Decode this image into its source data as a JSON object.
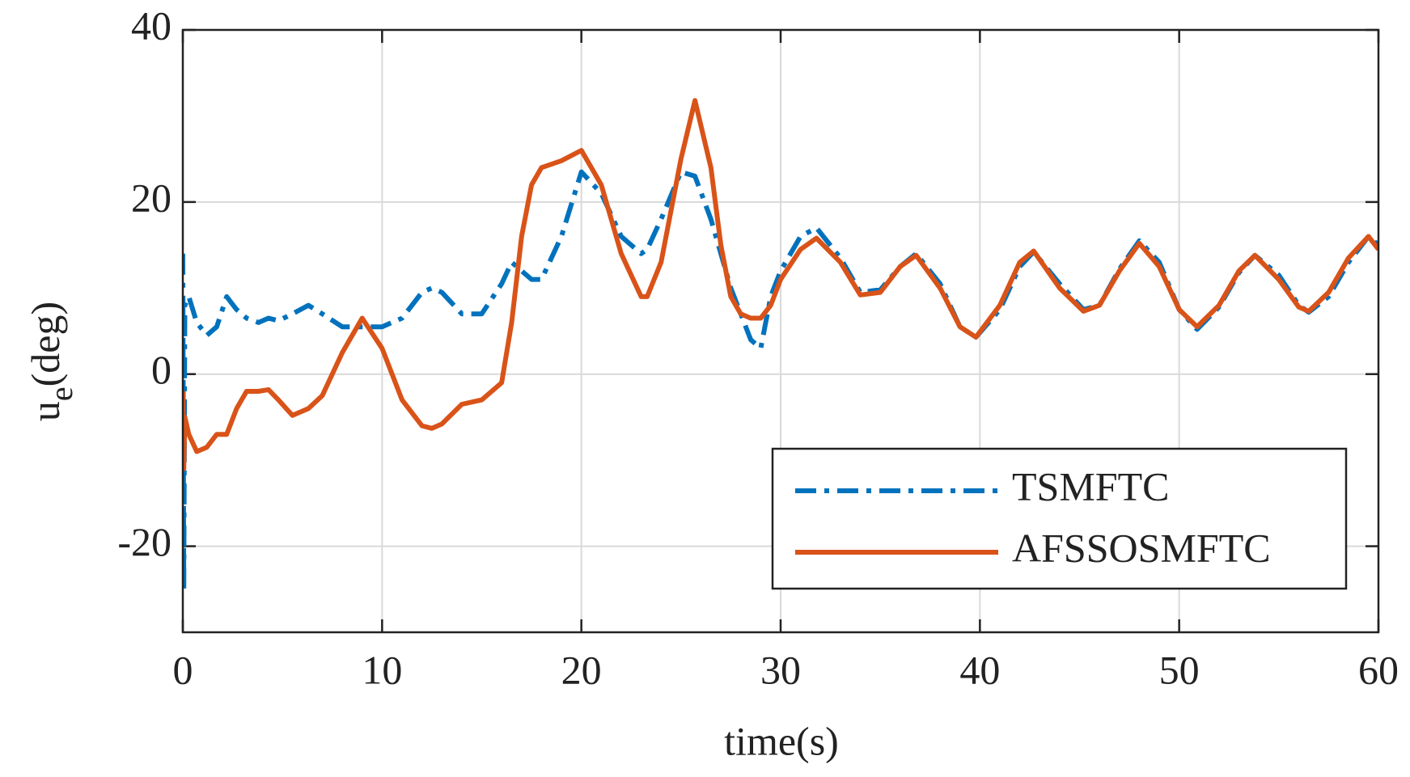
{
  "chart_data": {
    "type": "line",
    "xlabel": "time(s)",
    "ylabel_parts": [
      "u",
      "e",
      "(deg)"
    ],
    "x": [
      0,
      0.05,
      0.1,
      0.3,
      0.7,
      1.2,
      1.7,
      2.2,
      2.7,
      3.2,
      3.8,
      4.3,
      4.8,
      5.5,
      6.3,
      7,
      8,
      9,
      10,
      11,
      12,
      12.5,
      13,
      14,
      15,
      16,
      16.5,
      17,
      17.5,
      18,
      19,
      20,
      21,
      22,
      23,
      23.3,
      24,
      25,
      25.7,
      26.5,
      27,
      27.5,
      28,
      28.5,
      29,
      29.5,
      30,
      31,
      31.8,
      33,
      34,
      35,
      36,
      36.8,
      38,
      39,
      39.8,
      41,
      42,
      42.7,
      44,
      45.2,
      46,
      47,
      48,
      49,
      50,
      50.9,
      52,
      53,
      53.8,
      55,
      56,
      56.5,
      57.5,
      58.5,
      59.5,
      60
    ],
    "series": [
      {
        "name": "TSMFTC",
        "color": "#0072bd",
        "linestyle": "dashdot",
        "values": [
          14,
          -25,
          8,
          9,
          6,
          4.5,
          5.5,
          9,
          7.5,
          6.5,
          6,
          6.5,
          6.2,
          7,
          8,
          7,
          5.5,
          5.5,
          5.5,
          6.5,
          9.5,
          10,
          9.5,
          7,
          7,
          10.5,
          13,
          12,
          11,
          11,
          16,
          23.5,
          21,
          16,
          14,
          14.5,
          18,
          23.5,
          23,
          18,
          14,
          10,
          7,
          4,
          3,
          9,
          12,
          16,
          17,
          13.5,
          9.5,
          9.8,
          12.5,
          14,
          10.5,
          5.5,
          4.3,
          7.5,
          12.5,
          14.2,
          10.5,
          7.5,
          8,
          12.2,
          15.5,
          13,
          7.5,
          5.2,
          7.8,
          11.8,
          13.8,
          11.5,
          8,
          7.2,
          9,
          13,
          16,
          15
        ]
      },
      {
        "name": "AFSSOSMFTC",
        "color": "#d95319",
        "linestyle": "solid",
        "values": [
          -2,
          -11,
          -5,
          -7,
          -9,
          -8.5,
          -7,
          -7,
          -4,
          -2,
          -2,
          -1.8,
          -3,
          -4.8,
          -4,
          -2.5,
          2.5,
          6.5,
          3,
          -3,
          -6,
          -6.3,
          -5.8,
          -3.5,
          -3,
          -1,
          6,
          16,
          22,
          24,
          24.8,
          26,
          22,
          14,
          9,
          9,
          13,
          25,
          31.8,
          24,
          15,
          9,
          7,
          6.5,
          6.5,
          8,
          11,
          14.5,
          15.8,
          13,
          9.2,
          9.5,
          12.5,
          13.8,
          10,
          5.5,
          4.3,
          8,
          13,
          14.3,
          10,
          7.3,
          8,
          12,
          15.2,
          12.5,
          7.5,
          5.5,
          8,
          12,
          13.8,
          11,
          7.8,
          7.3,
          9.5,
          13.5,
          16,
          14.5
        ]
      }
    ],
    "xlim": [
      0,
      60
    ],
    "xticks": [
      0,
      10,
      20,
      30,
      40,
      50,
      60
    ],
    "ylim": [
      -30,
      40
    ],
    "yticks": [
      -20,
      0,
      20,
      40
    ],
    "grid": true,
    "legend": "lower right"
  }
}
